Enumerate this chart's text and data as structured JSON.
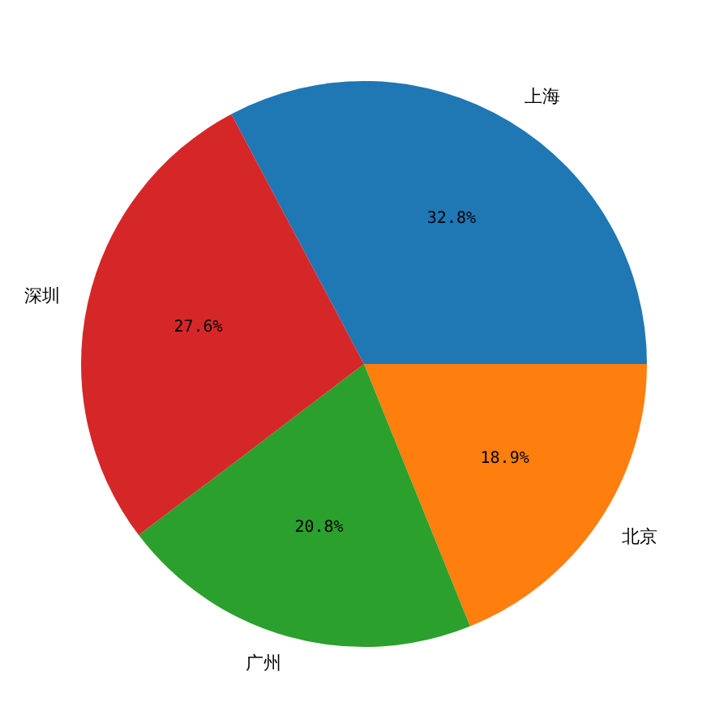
{
  "chart_data": {
    "type": "pie",
    "categories": [
      "上海",
      "北京",
      "广州",
      "深圳"
    ],
    "values": [
      32.8,
      18.9,
      20.8,
      27.6
    ],
    "colors": [
      "#1f77b4",
      "#ff7f0e",
      "#2ca02c",
      "#d62728"
    ],
    "value_labels": [
      "32.8%",
      "18.9%",
      "20.8%",
      "27.6%"
    ],
    "legend": false
  }
}
